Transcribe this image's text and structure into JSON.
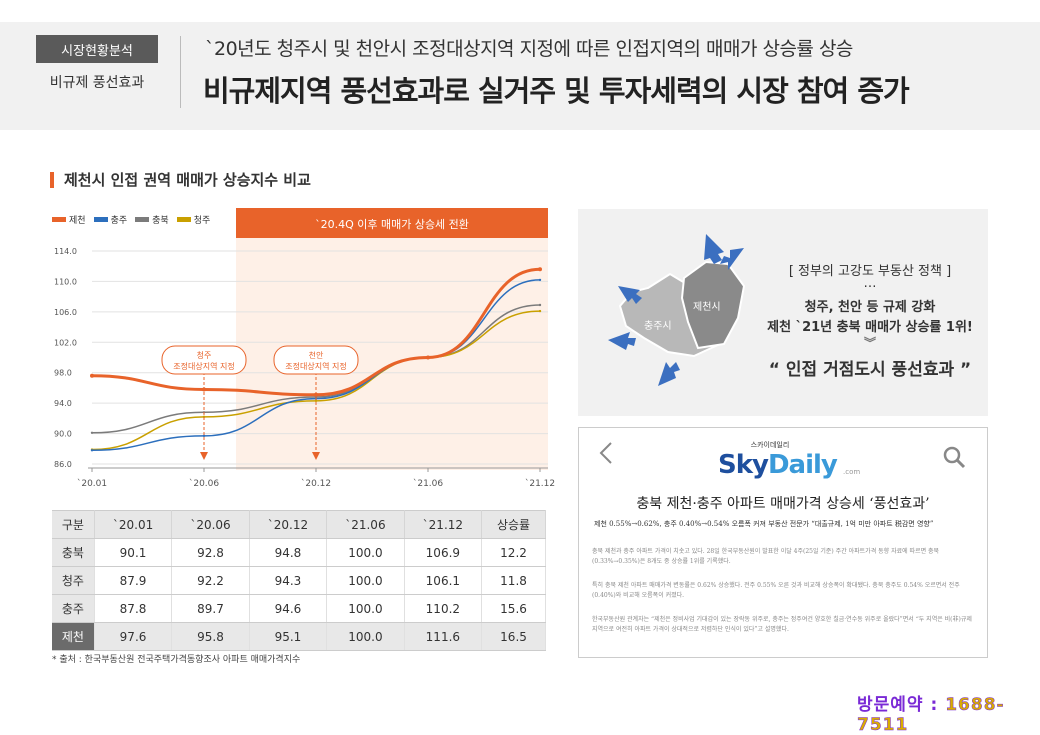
{
  "header": {
    "tag_label": "시장현황분석",
    "tag_sub": "비규제 풍선효과",
    "subtitle": "`20년도 청주시 및 천안시 조정대상지역 지정에 따른 인접지역의 매매가 상승률 상승",
    "title": "비규제지역 풍선효과로 실거주 및 투자세력의 시장 참여 증가"
  },
  "section_title": "제천시 인접 권역 매매가 상승지수 비교",
  "chart_data": {
    "type": "line",
    "title": "제천시 인접 권역 매매가 상승지수 비교",
    "categories": [
      "`20.01",
      "`20.06",
      "`20.12",
      "`21.06",
      "`21.12"
    ],
    "ylim": [
      86.0,
      114.0
    ],
    "yticks": [
      "114.0",
      "110.0",
      "106.0",
      "102.0",
      "98.0",
      "94.0",
      "90.0",
      "86.0"
    ],
    "grid": true,
    "legend": "top-left",
    "series": [
      {
        "name": "제천",
        "color": "#e8632a",
        "values": [
          97.6,
          95.8,
          95.1,
          100.0,
          111.6
        ]
      },
      {
        "name": "충주",
        "color": "#2c6fbd",
        "values": [
          87.8,
          89.7,
          94.6,
          100.0,
          110.2
        ]
      },
      {
        "name": "충북",
        "color": "#7b7b7b",
        "values": [
          90.1,
          92.8,
          94.8,
          100.0,
          106.9
        ]
      },
      {
        "name": "청주",
        "color": "#c9a000",
        "values": [
          87.9,
          92.2,
          94.3,
          100.0,
          106.1
        ]
      }
    ],
    "highlight_label": "`20.4Q 이후 매매가 상승세 전환",
    "annotations": [
      {
        "line1": "청주",
        "line2": "조정대상지역 지정"
      },
      {
        "line1": "천안",
        "line2": "조정대상지역 지정"
      }
    ]
  },
  "table": {
    "headers": [
      "구분",
      "`20.01",
      "`20.06",
      "`20.12",
      "`21.06",
      "`21.12",
      "상승률"
    ],
    "rows": [
      {
        "label": "충북",
        "values": [
          "90.1",
          "92.8",
          "94.8",
          "100.0",
          "106.9",
          "12.2"
        ]
      },
      {
        "label": "청주",
        "values": [
          "87.9",
          "92.2",
          "94.3",
          "100.0",
          "106.1",
          "11.8"
        ]
      },
      {
        "label": "충주",
        "values": [
          "87.8",
          "89.7",
          "94.6",
          "100.0",
          "110.2",
          "15.6"
        ]
      },
      {
        "label": "제천",
        "values": [
          "97.6",
          "95.8",
          "95.1",
          "100.0",
          "111.6",
          "16.5"
        ]
      }
    ]
  },
  "source": "* 출처 : 한국부동산원 전국주택가격동향조사 아파트 매매가격지수",
  "panel1": {
    "map_label_chungju": "충주시",
    "map_label_jecheon": "제천시",
    "line1": "[ 정부의 고강도 부동산 정책 ]",
    "dots": "…",
    "line2": "청주, 천안 등 규제 강화",
    "line3": "제천 `21년 충북 매매가 상승률 1위!",
    "chevron": "︾",
    "big": "“ 인접 거점도시 풍선효과 ”"
  },
  "news": {
    "back_icon": "chevron-left-icon",
    "logo_kr": "스카이데일리",
    "logo_part1": "Sky",
    "logo_part2": "Daily",
    "logo_com": ".com",
    "title": "충북 제천·충주 아파트 매매가격 상승세 ‘풍선효과’",
    "sub": "제천 0.55%→0.62%, 충주 0.40%→0.54% 오름폭 커져 부동산 전문가 “대출규제, 1억 미만 아파트 税감면 영향”",
    "p1": "충북 제천과 충주 아파트 가격이 치솟고 있다. 28일 한국부동산원이 발표한 이달 4주(25일 기준) 주간 아파트가격 동향 자료에 따르면 충북(0.33%→0.35%)은 8개도 중 상승률 1위를 기록했다.",
    "p2": "특히 충북 제천 아파트 매매가격 변동률은 0.62% 상승했다. 전주 0.55% 오른 것과 비교해 상승폭이 확대됐다. 충북 충주도 0.54% 오르면서 전주(0.40%)와 비교해 오름폭이 커졌다.",
    "p3": "한국부동산원 관계자는 “제천은 정비사업 기대감이 있는 장락동 위주로, 충주는 정주여건 양호한 칠금·연수동 위주로 올랐다”면서 “두 지역은 비(非)규제지역으로 여전히 아파트 가격이 상대적으로 저렴하단 인식이 있다”고 설명했다."
  },
  "phone": {
    "label": "방문예약 : ",
    "number": "1688-7511"
  }
}
